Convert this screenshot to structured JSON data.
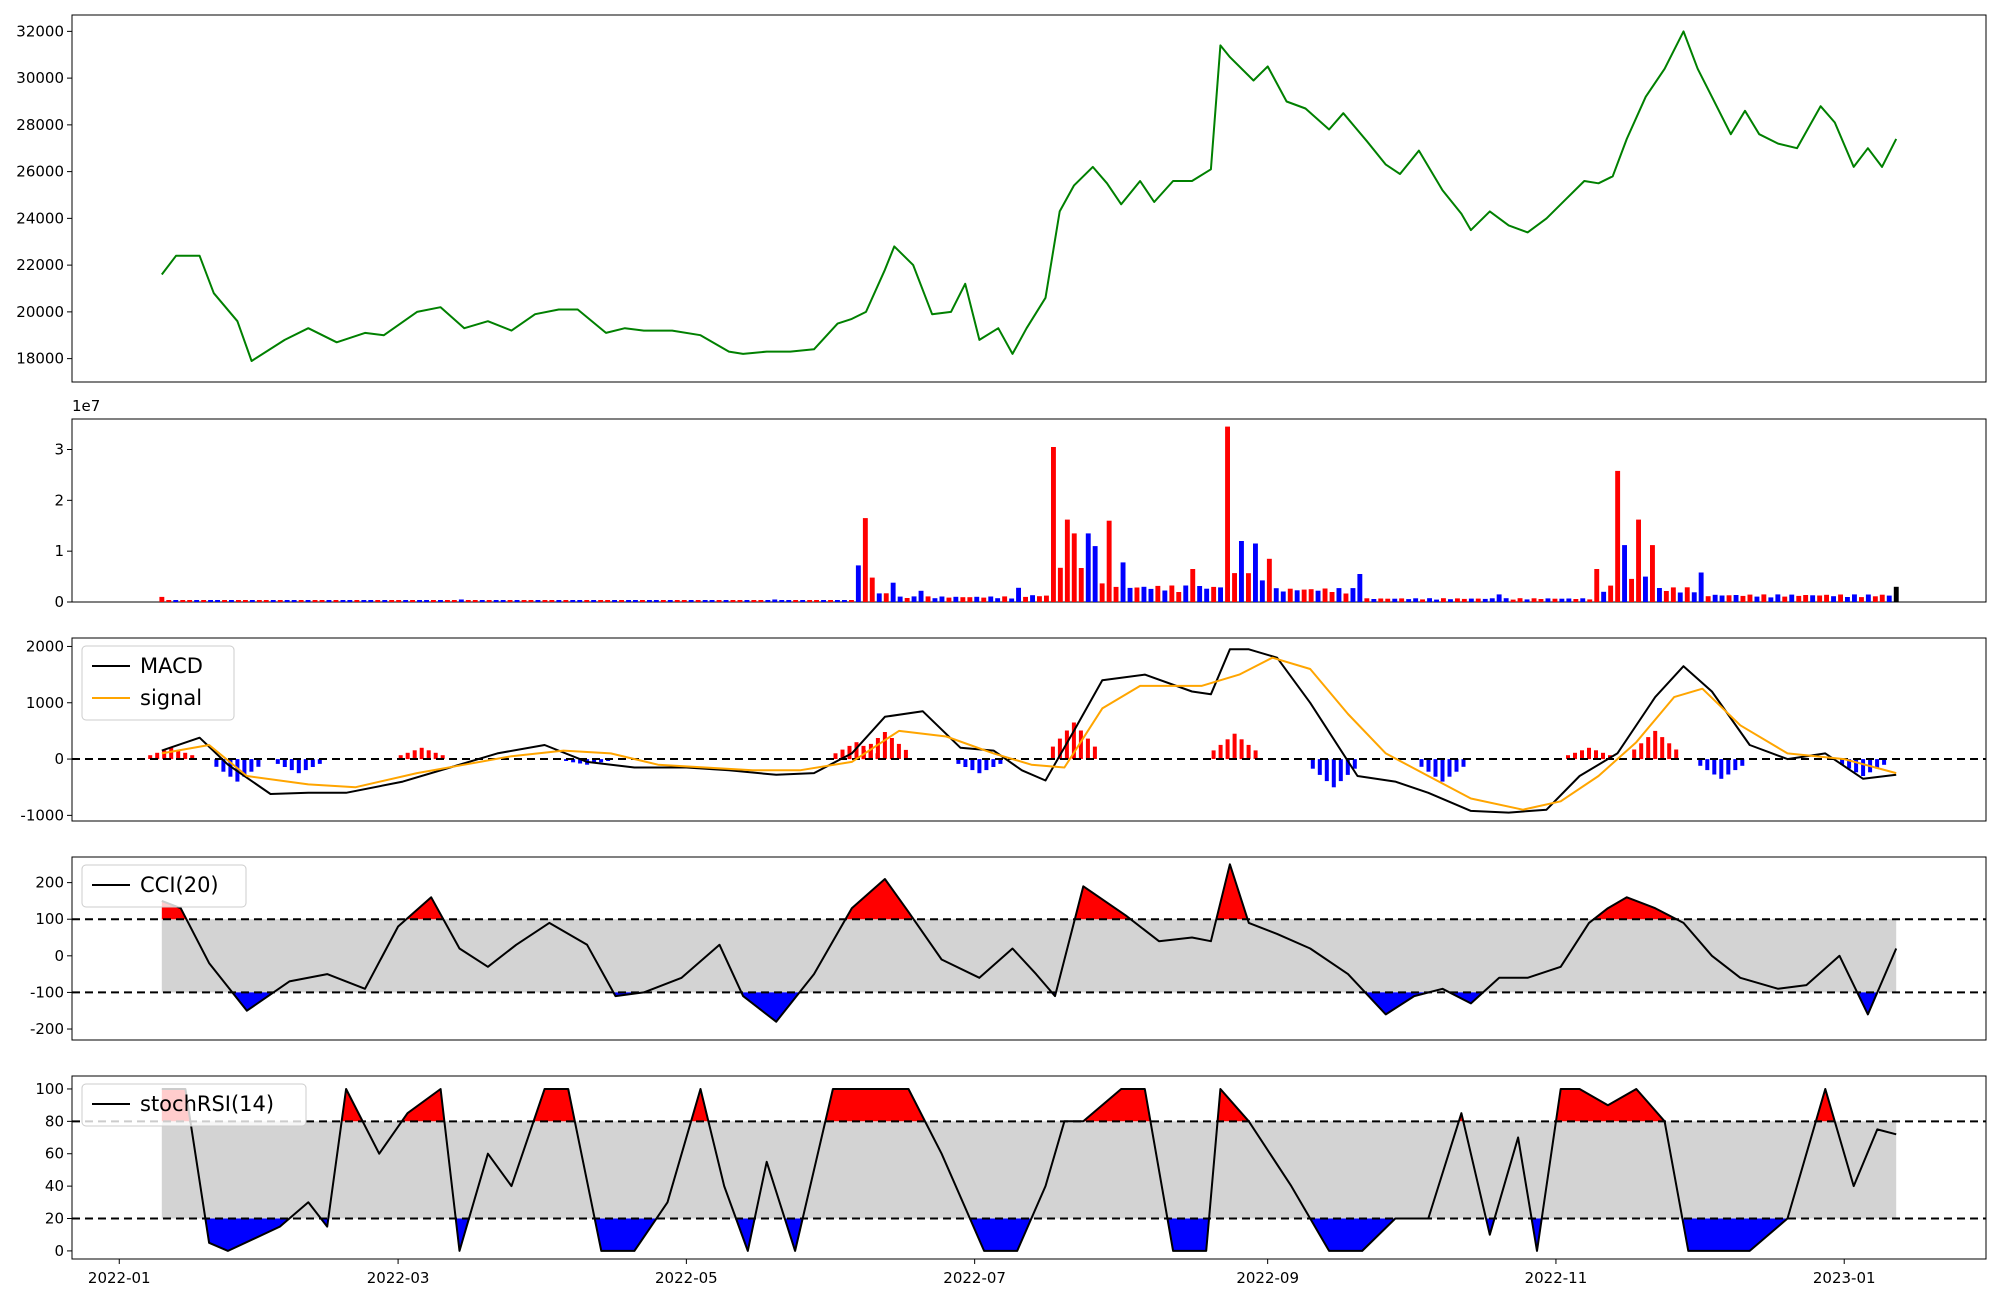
{
  "chart_data": [
    {
      "type": "line",
      "panel": "price",
      "color": "#008000",
      "ylim": [
        17000,
        32700
      ],
      "yticks": [
        18000,
        20000,
        22000,
        24000,
        26000,
        28000,
        30000,
        32000
      ],
      "x": [
        "2022-01-10",
        "2022-01-13",
        "2022-01-18",
        "2022-01-21",
        "2022-01-26",
        "2022-01-29",
        "2022-02-05",
        "2022-02-10",
        "2022-02-16",
        "2022-02-22",
        "2022-02-26",
        "2022-03-05",
        "2022-03-10",
        "2022-03-15",
        "2022-03-20",
        "2022-03-25",
        "2022-03-30",
        "2022-04-04",
        "2022-04-08",
        "2022-04-14",
        "2022-04-18",
        "2022-04-22",
        "2022-04-28",
        "2022-05-04",
        "2022-05-10",
        "2022-05-13",
        "2022-05-18",
        "2022-05-23",
        "2022-05-28",
        "2022-06-02",
        "2022-06-05",
        "2022-06-08",
        "2022-06-12",
        "2022-06-14",
        "2022-06-18",
        "2022-06-22",
        "2022-06-26",
        "2022-06-29",
        "2022-07-02",
        "2022-07-06",
        "2022-07-09",
        "2022-07-12",
        "2022-07-16",
        "2022-07-19",
        "2022-07-22",
        "2022-07-26",
        "2022-07-29",
        "2022-08-01",
        "2022-08-05",
        "2022-08-08",
        "2022-08-12",
        "2022-08-16",
        "2022-08-20",
        "2022-08-22",
        "2022-08-24",
        "2022-08-29",
        "2022-09-01",
        "2022-09-05",
        "2022-09-09",
        "2022-09-14",
        "2022-09-17",
        "2022-09-22",
        "2022-09-26",
        "2022-09-29",
        "2022-10-03",
        "2022-10-08",
        "2022-10-12",
        "2022-10-14",
        "2022-10-18",
        "2022-10-22",
        "2022-10-26",
        "2022-10-30",
        "2022-11-03",
        "2022-11-07",
        "2022-11-10",
        "2022-11-13",
        "2022-11-16",
        "2022-11-20",
        "2022-11-24",
        "2022-11-28",
        "2022-12-01",
        "2022-12-04",
        "2022-12-08",
        "2022-12-11",
        "2022-12-14",
        "2022-12-18",
        "2022-12-22",
        "2022-12-27",
        "2022-12-30",
        "2023-01-03",
        "2023-01-06",
        "2023-01-09",
        "2023-01-12"
      ],
      "y": [
        21600,
        22400,
        22400,
        20800,
        19600,
        17900,
        18800,
        19300,
        18700,
        19100,
        19000,
        20000,
        20200,
        19300,
        19600,
        19200,
        19900,
        20100,
        20100,
        19100,
        19300,
        19200,
        19200,
        19000,
        18300,
        18200,
        18300,
        18300,
        18400,
        19500,
        19700,
        20000,
        21800,
        22800,
        22000,
        19900,
        20000,
        21200,
        18800,
        19300,
        18200,
        19300,
        20600,
        24300,
        25400,
        26200,
        25500,
        24600,
        25600,
        24700,
        25600,
        25600,
        26100,
        31400,
        30900,
        29900,
        30500,
        29000,
        28700,
        27800,
        28500,
        27300,
        26300,
        25900,
        26900,
        25200,
        24200,
        23500,
        24300,
        23700,
        23400,
        24000,
        24800,
        25600,
        25500,
        25800,
        27400,
        29200,
        30400,
        32000,
        30400,
        29200,
        27600,
        28600,
        27600,
        27200,
        27000,
        28800,
        28100,
        26200,
        27000,
        26200,
        27400
      ]
    },
    {
      "type": "bar",
      "panel": "volume",
      "exponent_label": "1e7",
      "ylim": [
        0,
        3.6
      ],
      "yticks": [
        0,
        1,
        2,
        3
      ],
      "up_color": "#ff0000",
      "down_color": "#0000ff",
      "last_color": "#000000",
      "x_start": "2022-01-10",
      "x_end": "2023-01-12",
      "bar_count": 250,
      "values_1e7": [
        {
          "date": "2022-01-10",
          "value": 0.1,
          "color": "red"
        },
        {
          "date": "2022-03-15",
          "value": 0.05,
          "color": "blue"
        },
        {
          "date": "2022-05-20",
          "value": 0.05,
          "color": "blue"
        },
        {
          "date": "2022-06-06",
          "value": 0.72,
          "color": "blue"
        },
        {
          "date": "2022-06-08",
          "value": 1.65,
          "color": "red"
        },
        {
          "date": "2022-06-10",
          "value": 0.48,
          "color": "red"
        },
        {
          "date": "2022-06-14",
          "value": 0.38,
          "color": "blue"
        },
        {
          "date": "2022-06-20",
          "value": 0.22,
          "color": "blue"
        },
        {
          "date": "2022-07-11",
          "value": 0.28,
          "color": "blue"
        },
        {
          "date": "2022-07-18",
          "value": 3.05,
          "color": "red"
        },
        {
          "date": "2022-07-20",
          "value": 1.62,
          "color": "red"
        },
        {
          "date": "2022-07-22",
          "value": 1.35,
          "color": "red"
        },
        {
          "date": "2022-07-25",
          "value": 1.35,
          "color": "blue"
        },
        {
          "date": "2022-07-27",
          "value": 1.1,
          "color": "blue"
        },
        {
          "date": "2022-07-29",
          "value": 1.6,
          "color": "red"
        },
        {
          "date": "2022-08-02",
          "value": 0.78,
          "color": "blue"
        },
        {
          "date": "2022-08-16",
          "value": 0.65,
          "color": "red"
        },
        {
          "date": "2022-08-24",
          "value": 3.45,
          "color": "red"
        },
        {
          "date": "2022-08-26",
          "value": 1.2,
          "color": "blue"
        },
        {
          "date": "2022-08-29",
          "value": 1.15,
          "color": "blue"
        },
        {
          "date": "2022-09-02",
          "value": 0.85,
          "color": "red"
        },
        {
          "date": "2022-09-20",
          "value": 0.55,
          "color": "blue"
        },
        {
          "date": "2022-10-20",
          "value": 0.15,
          "color": "blue"
        },
        {
          "date": "2022-11-10",
          "value": 0.65,
          "color": "red"
        },
        {
          "date": "2022-11-14",
          "value": 2.58,
          "color": "red"
        },
        {
          "date": "2022-11-16",
          "value": 1.12,
          "color": "blue"
        },
        {
          "date": "2022-11-18",
          "value": 1.62,
          "color": "red"
        },
        {
          "date": "2022-11-22",
          "value": 1.12,
          "color": "red"
        },
        {
          "date": "2022-12-02",
          "value": 0.58,
          "color": "blue"
        },
        {
          "date": "2023-01-12",
          "value": 0.3,
          "color": "black"
        }
      ]
    },
    {
      "type": "line",
      "panel": "macd",
      "ylim": [
        -1100,
        2150
      ],
      "yticks": [
        -1000,
        0,
        1000,
        2000
      ],
      "zero_line": 0,
      "legend": [
        "MACD",
        "signal"
      ],
      "legend_position": "upper-left",
      "series": [
        {
          "name": "MACD",
          "color": "#000000",
          "x": [
            "2022-01-10",
            "2022-01-18",
            "2022-01-24",
            "2022-02-02",
            "2022-02-10",
            "2022-02-18",
            "2022-03-02",
            "2022-03-12",
            "2022-03-22",
            "2022-04-01",
            "2022-04-10",
            "2022-04-20",
            "2022-05-01",
            "2022-05-10",
            "2022-05-20",
            "2022-05-28",
            "2022-06-05",
            "2022-06-12",
            "2022-06-20",
            "2022-06-28",
            "2022-07-05",
            "2022-07-11",
            "2022-07-16",
            "2022-07-22",
            "2022-07-28",
            "2022-08-06",
            "2022-08-16",
            "2022-08-20",
            "2022-08-24",
            "2022-08-28",
            "2022-09-03",
            "2022-09-10",
            "2022-09-20",
            "2022-09-28",
            "2022-10-05",
            "2022-10-14",
            "2022-10-22",
            "2022-10-30",
            "2022-11-06",
            "2022-11-14",
            "2022-11-22",
            "2022-11-28",
            "2022-12-04",
            "2022-12-12",
            "2022-12-20",
            "2022-12-28",
            "2023-01-05",
            "2023-01-12"
          ],
          "y": [
            150,
            380,
            -100,
            -620,
            -600,
            -600,
            -400,
            -150,
            100,
            250,
            -50,
            -150,
            -150,
            -200,
            -280,
            -250,
            100,
            750,
            850,
            200,
            150,
            -200,
            -380,
            500,
            1400,
            1500,
            1200,
            1150,
            1950,
            1950,
            1800,
            1000,
            -300,
            -400,
            -600,
            -920,
            -950,
            -900,
            -300,
            100,
            1100,
            1650,
            1200,
            250,
            0,
            100,
            -350,
            -280
          ]
        },
        {
          "name": "signal",
          "color": "#ffa500",
          "x": [
            "2022-01-10",
            "2022-01-20",
            "2022-01-28",
            "2022-02-10",
            "2022-02-20",
            "2022-03-05",
            "2022-03-15",
            "2022-03-25",
            "2022-04-05",
            "2022-04-15",
            "2022-04-25",
            "2022-05-05",
            "2022-05-15",
            "2022-05-25",
            "2022-06-05",
            "2022-06-15",
            "2022-06-25",
            "2022-07-05",
            "2022-07-13",
            "2022-07-20",
            "2022-07-28",
            "2022-08-05",
            "2022-08-18",
            "2022-08-26",
            "2022-09-02",
            "2022-09-10",
            "2022-09-18",
            "2022-09-26",
            "2022-10-05",
            "2022-10-14",
            "2022-10-25",
            "2022-11-02",
            "2022-11-10",
            "2022-11-18",
            "2022-11-26",
            "2022-12-02",
            "2022-12-10",
            "2022-12-20",
            "2023-01-01",
            "2023-01-12"
          ],
          "y": [
            100,
            250,
            -300,
            -450,
            -500,
            -250,
            -100,
            50,
            150,
            100,
            -100,
            -150,
            -200,
            -200,
            -50,
            500,
            400,
            100,
            -100,
            -150,
            900,
            1300,
            1300,
            1500,
            1800,
            1600,
            800,
            100,
            -300,
            -700,
            -900,
            -750,
            -300,
            300,
            1100,
            1250,
            600,
            100,
            0,
            -250
          ]
        }
      ],
      "histogram_color_positive": "#ff0000",
      "histogram_color_negative": "#0000ff",
      "histogram": [
        {
          "date": "2022-01-12",
          "value": 200
        },
        {
          "date": "2022-01-26",
          "value": -400
        },
        {
          "date": "2022-02-08",
          "value": -250
        },
        {
          "date": "2022-03-06",
          "value": 200
        },
        {
          "date": "2022-04-10",
          "value": -100
        },
        {
          "date": "2022-06-06",
          "value": 300
        },
        {
          "date": "2022-06-12",
          "value": 480
        },
        {
          "date": "2022-07-02",
          "value": -250
        },
        {
          "date": "2022-07-22",
          "value": 650
        },
        {
          "date": "2022-08-25",
          "value": 450
        },
        {
          "date": "2022-09-15",
          "value": -500
        },
        {
          "date": "2022-10-08",
          "value": -400
        },
        {
          "date": "2022-11-08",
          "value": 200
        },
        {
          "date": "2022-11-22",
          "value": 500
        },
        {
          "date": "2022-12-06",
          "value": -350
        },
        {
          "date": "2023-01-05",
          "value": -300
        }
      ]
    },
    {
      "type": "area",
      "panel": "cci",
      "legend": [
        "CCI(20)"
      ],
      "legend_position": "upper-left",
      "ylim": [
        -230,
        270
      ],
      "yticks": [
        -200,
        -100,
        0,
        100,
        200
      ],
      "band": [
        -100,
        100
      ],
      "band_color": "#d3d3d3",
      "above_color": "#ff0000",
      "below_color": "#0000ff",
      "x": [
        "2022-01-10",
        "2022-01-14",
        "2022-01-20",
        "2022-01-28",
        "2022-02-06",
        "2022-02-14",
        "2022-02-22",
        "2022-03-01",
        "2022-03-08",
        "2022-03-14",
        "2022-03-20",
        "2022-03-26",
        "2022-04-02",
        "2022-04-10",
        "2022-04-16",
        "2022-04-22",
        "2022-04-30",
        "2022-05-08",
        "2022-05-13",
        "2022-05-20",
        "2022-05-28",
        "2022-06-05",
        "2022-06-12",
        "2022-06-17",
        "2022-06-24",
        "2022-07-02",
        "2022-07-09",
        "2022-07-14",
        "2022-07-18",
        "2022-07-24",
        "2022-08-02",
        "2022-08-09",
        "2022-08-16",
        "2022-08-20",
        "2022-08-24",
        "2022-08-28",
        "2022-09-03",
        "2022-09-10",
        "2022-09-18",
        "2022-09-26",
        "2022-10-02",
        "2022-10-08",
        "2022-10-14",
        "2022-10-20",
        "2022-10-26",
        "2022-11-02",
        "2022-11-08",
        "2022-11-12",
        "2022-11-16",
        "2022-11-22",
        "2022-11-28",
        "2022-12-04",
        "2022-12-10",
        "2022-12-18",
        "2022-12-24",
        "2022-12-31",
        "2023-01-06",
        "2023-01-12"
      ],
      "y": [
        150,
        130,
        -20,
        -150,
        -70,
        -50,
        -90,
        80,
        160,
        20,
        -30,
        30,
        90,
        30,
        -110,
        -100,
        -60,
        30,
        -110,
        -180,
        -50,
        130,
        210,
        120,
        -10,
        -60,
        20,
        -50,
        -110,
        190,
        110,
        40,
        50,
        40,
        250,
        90,
        60,
        20,
        -50,
        -160,
        -110,
        -90,
        -130,
        -60,
        -60,
        -30,
        90,
        130,
        160,
        130,
        90,
        0,
        -60,
        -90,
        -80,
        0,
        -160,
        20
      ]
    },
    {
      "type": "area",
      "panel": "stochrsi",
      "legend": [
        "stochRSI(14)"
      ],
      "legend_position": "upper-left",
      "ylim": [
        -5,
        108
      ],
      "yticks": [
        0,
        20,
        40,
        60,
        80,
        100
      ],
      "band": [
        20,
        80
      ],
      "band_color": "#d3d3d3",
      "above_color": "#ff0000",
      "below_color": "#0000ff",
      "x": [
        "2022-01-10",
        "2022-01-15",
        "2022-01-20",
        "2022-01-24",
        "2022-02-04",
        "2022-02-10",
        "2022-02-14",
        "2022-02-18",
        "2022-02-25",
        "2022-03-03",
        "2022-03-10",
        "2022-03-14",
        "2022-03-20",
        "2022-03-25",
        "2022-04-01",
        "2022-04-06",
        "2022-04-13",
        "2022-04-20",
        "2022-04-27",
        "2022-05-04",
        "2022-05-09",
        "2022-05-14",
        "2022-05-18",
        "2022-05-24",
        "2022-06-01",
        "2022-06-10",
        "2022-06-17",
        "2022-06-24",
        "2022-07-03",
        "2022-07-10",
        "2022-07-16",
        "2022-07-20",
        "2022-07-24",
        "2022-08-01",
        "2022-08-06",
        "2022-08-12",
        "2022-08-19",
        "2022-08-22",
        "2022-08-28",
        "2022-09-06",
        "2022-09-14",
        "2022-09-21",
        "2022-09-28",
        "2022-10-05",
        "2022-10-12",
        "2022-10-18",
        "2022-10-24",
        "2022-10-28",
        "2022-11-02",
        "2022-11-06",
        "2022-11-12",
        "2022-11-18",
        "2022-11-24",
        "2022-11-29",
        "2022-12-04",
        "2022-12-12",
        "2022-12-20",
        "2022-12-28",
        "2023-01-03",
        "2023-01-08",
        "2023-01-12"
      ],
      "y": [
        100,
        100,
        5,
        0,
        15,
        30,
        15,
        100,
        60,
        85,
        100,
        0,
        60,
        40,
        100,
        100,
        0,
        0,
        30,
        100,
        40,
        0,
        55,
        0,
        100,
        100,
        100,
        60,
        0,
        0,
        40,
        80,
        80,
        100,
        100,
        0,
        0,
        100,
        80,
        40,
        0,
        0,
        20,
        20,
        85,
        10,
        70,
        0,
        100,
        100,
        90,
        100,
        80,
        0,
        0,
        0,
        20,
        100,
        40,
        75,
        72
      ]
    },
    {
      "type": "axis",
      "panel": "shared-x",
      "x_ticks": [
        "2022-01",
        "2022-03",
        "2022-05",
        "2022-07",
        "2022-09",
        "2022-11",
        "2023-01"
      ]
    }
  ]
}
